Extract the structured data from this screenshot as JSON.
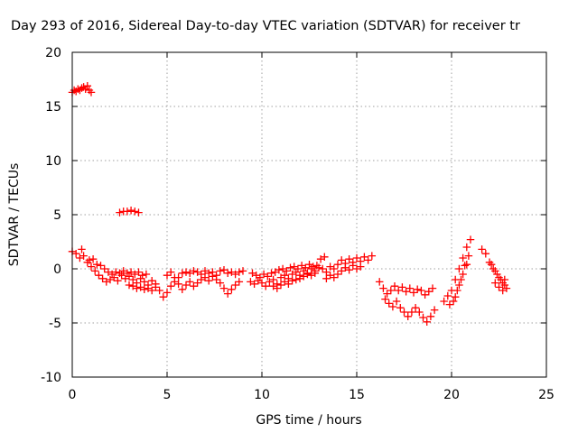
{
  "chart_data": {
    "type": "scatter",
    "title": "Day 293 of 2016, Sidereal Day-to-day VTEC variation (SDTVAR) for receiver tr",
    "xlabel": "GPS time / hours",
    "ylabel": "SDTVAR / TECUs",
    "xlim": [
      0,
      25
    ],
    "ylim": [
      -10,
      20
    ],
    "xticks": [
      "0",
      "5",
      "10",
      "15",
      "20",
      "25"
    ],
    "yticks": [
      "-10",
      "-5",
      "0",
      "5",
      "10",
      "15",
      "20"
    ],
    "grid": true,
    "legend": "none",
    "marker": "plus",
    "color": "#ff0000",
    "series": [
      {
        "name": "SDTVAR",
        "points": [
          [
            0.0,
            16.3
          ],
          [
            0.1,
            16.5
          ],
          [
            0.2,
            16.4
          ],
          [
            0.3,
            16.6
          ],
          [
            0.4,
            16.5
          ],
          [
            0.5,
            16.7
          ],
          [
            0.6,
            16.8
          ],
          [
            0.7,
            16.6
          ],
          [
            0.8,
            16.9
          ],
          [
            0.9,
            16.5
          ],
          [
            1.0,
            16.3
          ],
          [
            2.5,
            5.2
          ],
          [
            2.7,
            5.3
          ],
          [
            2.9,
            5.3
          ],
          [
            3.1,
            5.4
          ],
          [
            3.3,
            5.3
          ],
          [
            3.5,
            5.2
          ],
          [
            0.0,
            1.6
          ],
          [
            0.2,
            1.4
          ],
          [
            0.4,
            1.0
          ],
          [
            0.5,
            1.8
          ],
          [
            0.6,
            1.2
          ],
          [
            0.8,
            0.6
          ],
          [
            1.0,
            0.2
          ],
          [
            1.2,
            -0.2
          ],
          [
            1.4,
            -0.6
          ],
          [
            1.6,
            -0.9
          ],
          [
            1.8,
            -1.2
          ],
          [
            2.0,
            -1.0
          ],
          [
            2.2,
            -0.8
          ],
          [
            2.4,
            -1.1
          ],
          [
            2.6,
            -0.6
          ],
          [
            2.8,
            -0.9
          ],
          [
            3.0,
            -0.7
          ],
          [
            3.2,
            -1.0
          ],
          [
            3.4,
            -1.3
          ],
          [
            3.6,
            -0.9
          ],
          [
            3.8,
            -1.2
          ],
          [
            4.0,
            -1.5
          ],
          [
            4.2,
            -1.1
          ],
          [
            4.4,
            -1.4
          ],
          [
            0.9,
            0.8
          ],
          [
            1.1,
            0.9
          ],
          [
            1.3,
            0.4
          ],
          [
            1.5,
            0.3
          ],
          [
            1.7,
            0.0
          ],
          [
            1.9,
            -0.3
          ],
          [
            2.1,
            -0.5
          ],
          [
            2.3,
            -0.3
          ],
          [
            2.5,
            -0.4
          ],
          [
            2.7,
            -0.2
          ],
          [
            2.9,
            -0.4
          ],
          [
            3.1,
            -0.3
          ],
          [
            3.3,
            -0.5
          ],
          [
            3.5,
            -0.3
          ],
          [
            3.7,
            -0.6
          ],
          [
            3.9,
            -0.5
          ],
          [
            3.0,
            -1.5
          ],
          [
            3.2,
            -1.6
          ],
          [
            3.4,
            -1.8
          ],
          [
            3.6,
            -1.7
          ],
          [
            3.8,
            -1.9
          ],
          [
            4.0,
            -1.8
          ],
          [
            4.2,
            -2.0
          ],
          [
            4.4,
            -1.7
          ],
          [
            4.6,
            -2.0
          ],
          [
            4.8,
            -2.6
          ],
          [
            5.0,
            -2.2
          ],
          [
            5.2,
            -1.6
          ],
          [
            5.4,
            -1.2
          ],
          [
            5.6,
            -0.8
          ],
          [
            5.8,
            -0.4
          ],
          [
            6.0,
            -0.3
          ],
          [
            6.2,
            -0.4
          ],
          [
            6.4,
            -0.2
          ],
          [
            6.6,
            -0.3
          ],
          [
            6.8,
            -0.5
          ],
          [
            7.0,
            -0.2
          ],
          [
            7.2,
            -0.4
          ],
          [
            7.4,
            -0.3
          ],
          [
            7.6,
            -0.6
          ],
          [
            7.8,
            -0.2
          ],
          [
            8.0,
            -0.1
          ],
          [
            8.2,
            -0.4
          ],
          [
            8.4,
            -0.3
          ],
          [
            8.6,
            -0.5
          ],
          [
            8.8,
            -0.3
          ],
          [
            9.0,
            -0.2
          ],
          [
            5.0,
            -0.6
          ],
          [
            5.2,
            -0.3
          ],
          [
            5.4,
            -0.8
          ],
          [
            5.6,
            -1.4
          ],
          [
            5.8,
            -1.9
          ],
          [
            6.0,
            -1.5
          ],
          [
            6.2,
            -1.2
          ],
          [
            6.4,
            -1.6
          ],
          [
            6.6,
            -1.3
          ],
          [
            6.8,
            -1.0
          ],
          [
            7.0,
            -0.8
          ],
          [
            7.2,
            -1.1
          ],
          [
            7.4,
            -0.7
          ],
          [
            7.6,
            -1.0
          ],
          [
            7.8,
            -1.3
          ],
          [
            8.0,
            -1.8
          ],
          [
            8.2,
            -2.3
          ],
          [
            8.4,
            -1.9
          ],
          [
            8.6,
            -1.5
          ],
          [
            8.8,
            -1.2
          ],
          [
            9.4,
            -1.2
          ],
          [
            9.6,
            -1.4
          ],
          [
            9.8,
            -1.1
          ],
          [
            10.0,
            -1.3
          ],
          [
            10.2,
            -1.6
          ],
          [
            10.4,
            -1.2
          ],
          [
            10.6,
            -1.0
          ],
          [
            10.8,
            -1.4
          ],
          [
            11.0,
            -0.8
          ],
          [
            11.2,
            -0.6
          ],
          [
            11.4,
            -0.9
          ],
          [
            11.6,
            -0.5
          ],
          [
            11.8,
            -0.3
          ],
          [
            12.0,
            -0.6
          ],
          [
            12.2,
            -0.2
          ],
          [
            12.4,
            -0.4
          ],
          [
            12.6,
            0.0
          ],
          [
            12.8,
            -0.2
          ],
          [
            13.0,
            0.1
          ],
          [
            13.2,
            0.0
          ],
          [
            13.4,
            -0.3
          ],
          [
            13.6,
            0.2
          ],
          [
            13.8,
            0.0
          ],
          [
            14.0,
            0.4
          ],
          [
            14.2,
            0.8
          ],
          [
            14.4,
            0.5
          ],
          [
            14.6,
            0.9
          ],
          [
            14.8,
            0.6
          ],
          [
            15.0,
            1.0
          ],
          [
            15.2,
            0.7
          ],
          [
            15.4,
            1.1
          ],
          [
            15.6,
            0.8
          ],
          [
            15.8,
            1.2
          ],
          [
            9.5,
            -0.4
          ],
          [
            9.7,
            -0.6
          ],
          [
            9.9,
            -0.8
          ],
          [
            10.1,
            -0.5
          ],
          [
            10.3,
            -0.7
          ],
          [
            10.5,
            -0.4
          ],
          [
            10.7,
            -0.3
          ],
          [
            10.9,
            -0.1
          ],
          [
            11.1,
            0.0
          ],
          [
            11.3,
            -0.2
          ],
          [
            11.5,
            0.1
          ],
          [
            11.7,
            0.2
          ],
          [
            11.9,
            0.0
          ],
          [
            12.1,
            0.3
          ],
          [
            12.3,
            0.1
          ],
          [
            12.5,
            0.4
          ],
          [
            12.7,
            0.2
          ],
          [
            12.9,
            0.3
          ],
          [
            13.1,
            0.9
          ],
          [
            13.3,
            1.1
          ],
          [
            10.6,
            -1.6
          ],
          [
            10.8,
            -1.8
          ],
          [
            11.0,
            -1.5
          ],
          [
            11.2,
            -1.2
          ],
          [
            11.4,
            -1.4
          ],
          [
            11.6,
            -1.1
          ],
          [
            11.8,
            -1.0
          ],
          [
            12.0,
            -0.9
          ],
          [
            12.2,
            -0.7
          ],
          [
            12.4,
            -0.5
          ],
          [
            12.6,
            -0.6
          ],
          [
            12.8,
            -0.4
          ],
          [
            13.4,
            -0.9
          ],
          [
            13.6,
            -0.6
          ],
          [
            13.8,
            -0.8
          ],
          [
            14.0,
            -0.5
          ],
          [
            14.2,
            -0.2
          ],
          [
            14.4,
            0.1
          ],
          [
            14.6,
            -0.1
          ],
          [
            14.8,
            0.3
          ],
          [
            15.0,
            0.0
          ],
          [
            15.2,
            0.2
          ],
          [
            16.2,
            -1.2
          ],
          [
            16.4,
            -1.8
          ],
          [
            16.6,
            -2.3
          ],
          [
            16.8,
            -2.0
          ],
          [
            17.0,
            -1.6
          ],
          [
            17.2,
            -2.0
          ],
          [
            17.4,
            -1.7
          ],
          [
            17.6,
            -2.1
          ],
          [
            17.8,
            -1.8
          ],
          [
            18.0,
            -2.2
          ],
          [
            18.2,
            -1.9
          ],
          [
            18.4,
            -2.0
          ],
          [
            18.6,
            -2.4
          ],
          [
            18.8,
            -2.1
          ],
          [
            19.0,
            -1.8
          ],
          [
            16.5,
            -2.8
          ],
          [
            16.7,
            -3.2
          ],
          [
            16.9,
            -3.5
          ],
          [
            17.1,
            -3.0
          ],
          [
            17.3,
            -3.6
          ],
          [
            17.5,
            -4.0
          ],
          [
            17.7,
            -4.4
          ],
          [
            17.9,
            -4.0
          ],
          [
            18.1,
            -3.6
          ],
          [
            18.3,
            -4.0
          ],
          [
            18.5,
            -4.5
          ],
          [
            18.7,
            -4.9
          ],
          [
            18.9,
            -4.4
          ],
          [
            19.1,
            -3.8
          ],
          [
            19.6,
            -3.0
          ],
          [
            19.8,
            -2.5
          ],
          [
            20.0,
            -2.0
          ],
          [
            20.2,
            -1.0
          ],
          [
            20.4,
            0.0
          ],
          [
            20.6,
            1.0
          ],
          [
            20.8,
            2.0
          ],
          [
            21.0,
            2.7
          ],
          [
            20.1,
            -3.0
          ],
          [
            20.3,
            -2.0
          ],
          [
            20.5,
            -1.0
          ],
          [
            20.7,
            0.3
          ],
          [
            20.9,
            1.2
          ],
          [
            19.9,
            -3.3
          ],
          [
            20.2,
            -2.6
          ],
          [
            20.4,
            -1.5
          ],
          [
            20.6,
            -0.5
          ],
          [
            20.8,
            0.4
          ],
          [
            21.6,
            1.8
          ],
          [
            21.8,
            1.4
          ],
          [
            22.0,
            0.6
          ],
          [
            22.2,
            0.0
          ],
          [
            22.4,
            -0.5
          ],
          [
            22.6,
            -1.0
          ],
          [
            22.8,
            -1.5
          ],
          [
            22.9,
            -1.8
          ],
          [
            22.1,
            0.4
          ],
          [
            22.3,
            -0.2
          ],
          [
            22.5,
            -0.8
          ],
          [
            22.7,
            -1.3
          ],
          [
            22.8,
            -1.0
          ],
          [
            22.3,
            -1.3
          ],
          [
            22.5,
            -1.7
          ],
          [
            22.7,
            -2.0
          ]
        ]
      }
    ]
  }
}
